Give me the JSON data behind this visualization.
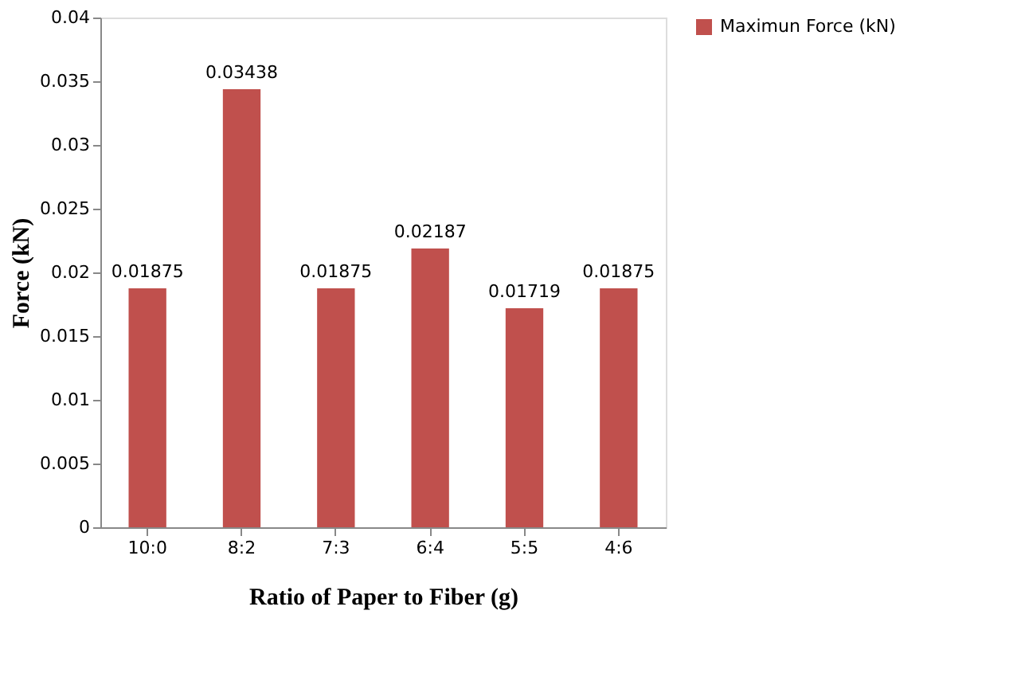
{
  "chart_data": {
    "type": "bar",
    "xlabel": "Ratio of Paper to Fiber (g)",
    "ylabel": "Force (kN)",
    "categories": [
      "10:0",
      "8:2",
      "7:3",
      "6:4",
      "5:5",
      "4:6"
    ],
    "series": [
      {
        "name": "Maximun Force (kN)",
        "color": "#c0504d",
        "values": [
          0.01875,
          0.03438,
          0.01875,
          0.02187,
          0.01719,
          0.01875
        ]
      }
    ],
    "ylim": [
      0,
      0.04
    ],
    "yticks": [
      0,
      0.005,
      0.01,
      0.015,
      0.02,
      0.025,
      0.03,
      0.035,
      0.04
    ],
    "grid": false,
    "legend": "right",
    "data_labels": true
  }
}
